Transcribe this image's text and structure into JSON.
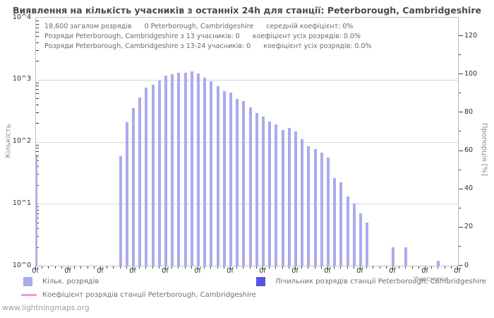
{
  "header": {
    "title": "Виявлення на кількість учасників з останніх 24h для станції: Peterborough, Cambridgeshire"
  },
  "chart_data": {
    "type": "bar",
    "title": "Виявлення на кількість учасників з останніх 24h для станції: Peterborough, Cambridgeshire",
    "annotations": [
      "18,600 загалом розрядів      0 Peterborough, Cambridgeshire      середній коефіцієнт: 0%",
      "Розряди Peterborough, Cambridgeshire з 13 учасників: 0      коефіцієнт усіх розрядів: 0.0%",
      "Розряди Peterborough, Cambridgeshire з 13-24 учасників: 0      коефіцієнт усіх розрядів: 0.0%"
    ],
    "x_axis": {
      "label": "Учасники",
      "min": 0,
      "max": 65,
      "major_tick_step": 5,
      "minor_tick_step": 1,
      "major_tick_label": "0f"
    },
    "y_axis_left": {
      "label": "Кількість",
      "scale": "log",
      "tick_labels": [
        "10^0",
        "10^1",
        "10^2",
        "10^3",
        "10^4"
      ],
      "min": 1,
      "max": 10000
    },
    "y_axis_right": {
      "label": "Пропорція [%]",
      "min": 0,
      "max": 120,
      "tick_step": 20,
      "minor_tick_step": 10
    },
    "grid": "horizontal decade gridlines on",
    "legend_position": "bottom",
    "bars": [
      [
        0,
        58
      ],
      [
        13,
        58
      ],
      [
        14,
        207
      ],
      [
        15,
        345
      ],
      [
        16,
        512
      ],
      [
        17,
        738
      ],
      [
        18,
        820
      ],
      [
        19,
        975
      ],
      [
        20,
        1160
      ],
      [
        21,
        1230
      ],
      [
        22,
        1290
      ],
      [
        23,
        1290
      ],
      [
        24,
        1370
      ],
      [
        25,
        1260
      ],
      [
        26,
        1070
      ],
      [
        27,
        940
      ],
      [
        28,
        780
      ],
      [
        29,
        660
      ],
      [
        30,
        620
      ],
      [
        31,
        490
      ],
      [
        32,
        450
      ],
      [
        33,
        360
      ],
      [
        34,
        290
      ],
      [
        35,
        253
      ],
      [
        36,
        210
      ],
      [
        37,
        190
      ],
      [
        38,
        155
      ],
      [
        39,
        166
      ],
      [
        40,
        148
      ],
      [
        41,
        110
      ],
      [
        42,
        85
      ],
      [
        43,
        76
      ],
      [
        44,
        66
      ],
      [
        45,
        56
      ],
      [
        46,
        26
      ],
      [
        47,
        22
      ],
      [
        48,
        13
      ],
      [
        49,
        10
      ],
      [
        50,
        7
      ],
      [
        51,
        5
      ],
      [
        55,
        2
      ],
      [
        57,
        2
      ],
      [
        62,
        1.2
      ]
    ],
    "colors": {
      "bar": "#aaaaee",
      "station_bar": "#5555dd",
      "coefficient_line": "#f09ae2",
      "grid": "#d8d8d8",
      "axis_border": "#c0c0c0",
      "tick": "#3c3c3c"
    }
  },
  "legend": {
    "items": [
      {
        "swatch": "square",
        "color": "#aaaaee",
        "label": "Кільк. розрядів"
      },
      {
        "swatch": "square",
        "color": "#5555dd",
        "label": "Лічильник розрядів станції Peterborough, Cambridgeshire"
      },
      {
        "swatch": "line",
        "color": "#f09ae2",
        "label": "Коефіцієнт розрядів станції Peterborough, Cambridgeshire"
      }
    ]
  },
  "footer": {
    "watermark": "www.lightningmaps.org"
  }
}
